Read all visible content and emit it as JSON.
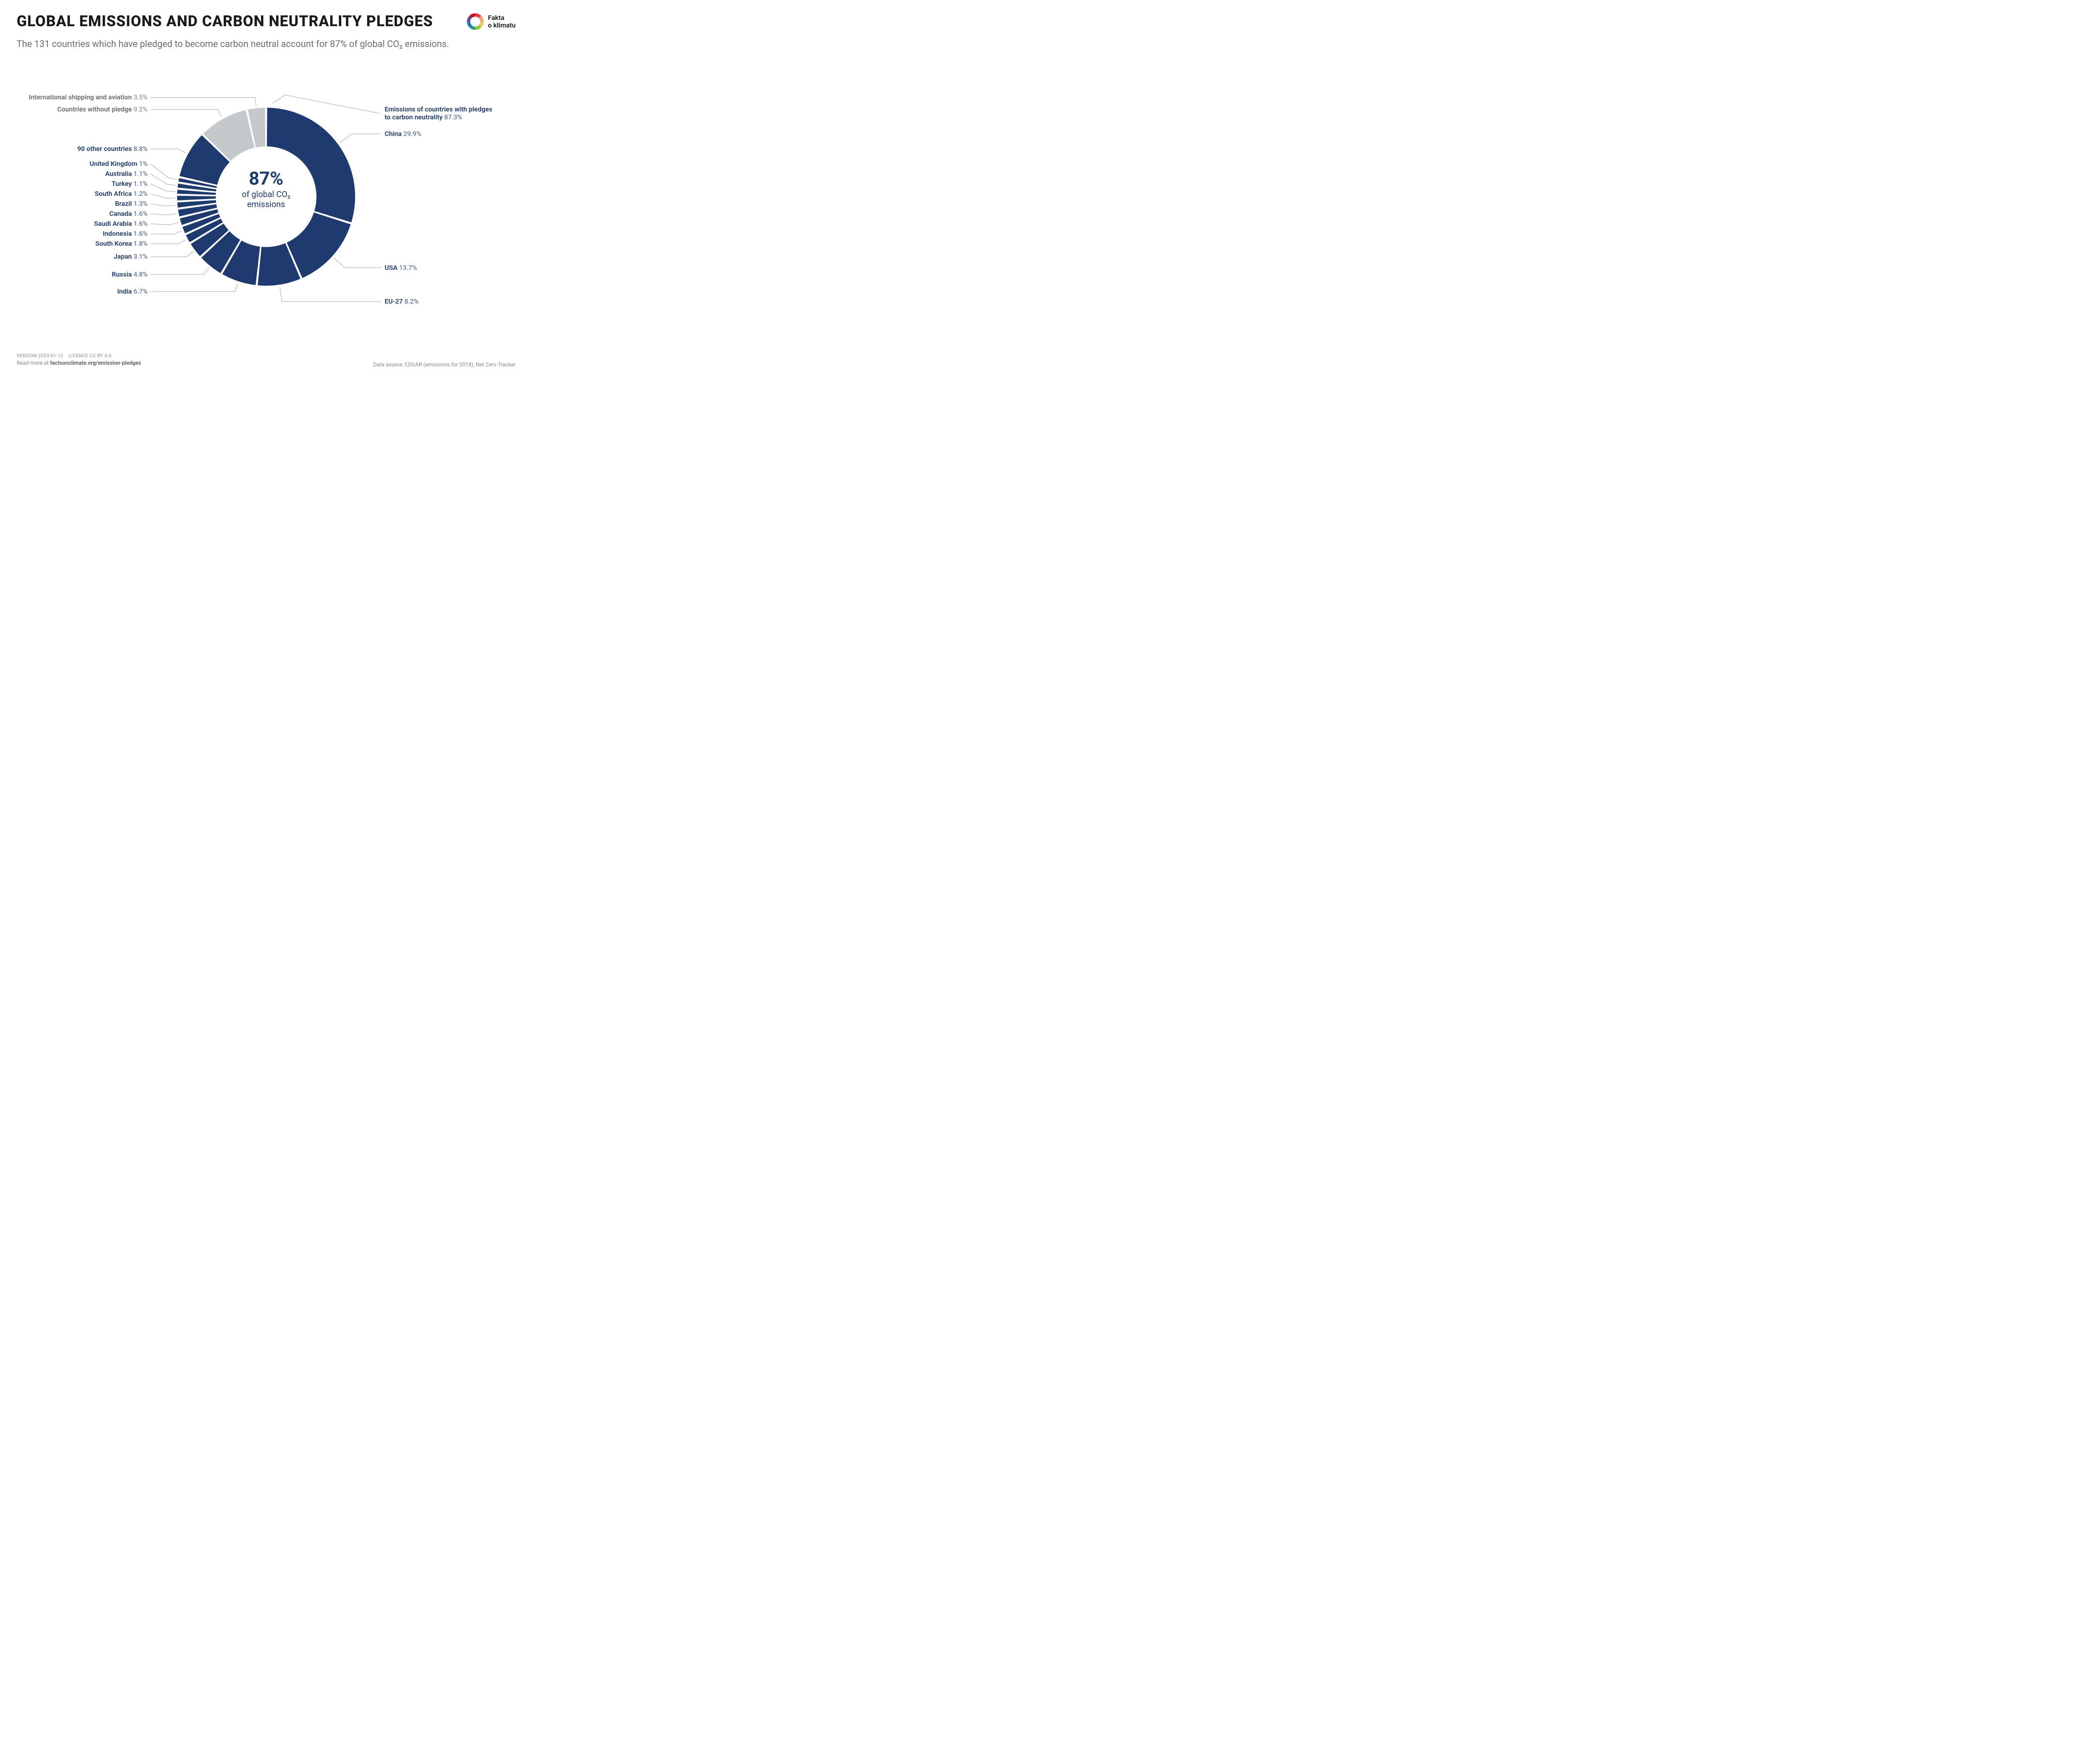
{
  "title": "GLOBAL EMISSIONS AND CARBON NEUTRALITY PLEDGES",
  "subtitle": "The 131 countries which have pledged to become carbon neutral account for 87% of global CO₂ emissions.",
  "logo": {
    "line1": "Fakta",
    "line2": "o klimatu",
    "ring_colors": [
      "#e63946",
      "#f4a261",
      "#e9c46a",
      "#8ac926",
      "#2a9d8f",
      "#1d7cc0",
      "#6a4c93",
      "#c1121f"
    ]
  },
  "chart": {
    "type": "donut",
    "outer_radius": 215,
    "inner_radius": 120,
    "gap_deg": 0.8,
    "center_big": "87%",
    "center_small": "of global CO₂\nemissions",
    "pledged_color": "#1e3a6e",
    "other_color": "#c6c9cc",
    "leader_color": "#9aa0a6",
    "background_color": "#ffffff",
    "main_label": {
      "name": "Emissions of countries with pledges\nto carbon neutrality",
      "pct": "87.3%"
    },
    "slices": [
      {
        "name": "China",
        "value": 29.9,
        "group": "pledged"
      },
      {
        "name": "USA",
        "value": 13.7,
        "group": "pledged"
      },
      {
        "name": "EU-27",
        "value": 8.2,
        "group": "pledged"
      },
      {
        "name": "India",
        "value": 6.7,
        "group": "pledged"
      },
      {
        "name": "Russia",
        "value": 4.8,
        "group": "pledged"
      },
      {
        "name": "Japan",
        "value": 3.1,
        "group": "pledged"
      },
      {
        "name": "South Korea",
        "value": 1.8,
        "group": "pledged"
      },
      {
        "name": "Indonesia",
        "value": 1.6,
        "group": "pledged"
      },
      {
        "name": "Saudi Arabia",
        "value": 1.6,
        "group": "pledged"
      },
      {
        "name": "Canada",
        "value": 1.6,
        "group": "pledged"
      },
      {
        "name": "Brazil",
        "value": 1.3,
        "group": "pledged"
      },
      {
        "name": "South Africa",
        "value": 1.2,
        "group": "pledged"
      },
      {
        "name": "Turkey",
        "value": 1.1,
        "group": "pledged"
      },
      {
        "name": "Australia",
        "value": 1.1,
        "group": "pledged"
      },
      {
        "name": "United Kingdom",
        "value": 1.0,
        "group": "pledged"
      },
      {
        "name": "90 other countries",
        "value": 8.8,
        "group": "pledged"
      },
      {
        "name": "Countries without pledge",
        "value": 9.2,
        "group": "other"
      },
      {
        "name": "International shipping and aviation",
        "value": 3.5,
        "group": "other"
      }
    ]
  },
  "footer": {
    "version": "VERSION 2023-01-12",
    "licence": "LICENCE CC BY 4.0",
    "readmore": "Read more at ",
    "link": "factsonclimate.org/emission-pledges",
    "source": "Data source: EDGAR (emissions for 2018), Net Zero Tracker"
  }
}
